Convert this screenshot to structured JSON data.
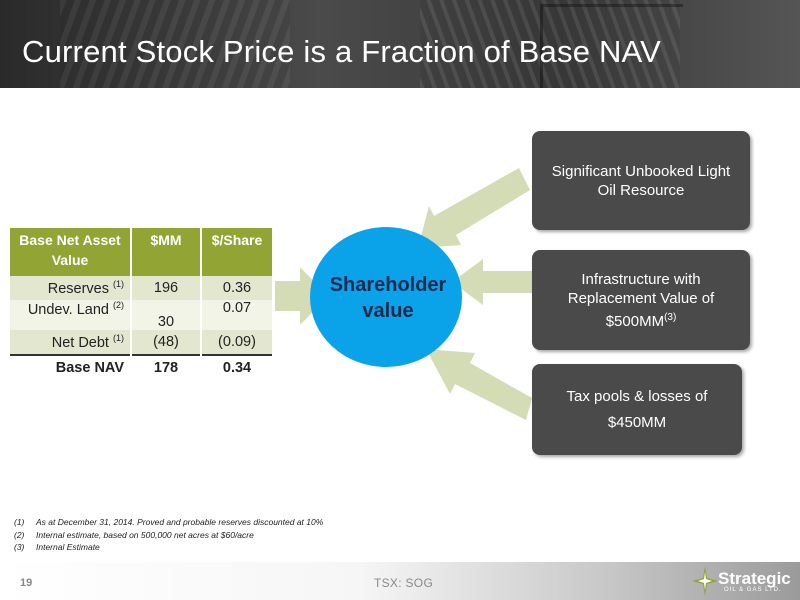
{
  "title": "Current Stock Price is a Fraction of Base NAV",
  "table": {
    "headers": [
      "Base Net Asset Value",
      "$MM",
      "$/Share"
    ],
    "rows": [
      {
        "label": "Reserves",
        "note": "(1)",
        "mm": "196",
        "share": "0.36"
      },
      {
        "label": "Undev. Land",
        "note": "(2)",
        "mm": "30",
        "share": "0.07"
      },
      {
        "label": "Net Debt",
        "note": "(1)",
        "mm": "(48)",
        "share": "(0.09)"
      }
    ],
    "total": {
      "label": "Base NAV",
      "mm": "178",
      "share": "0.34"
    }
  },
  "diagram": {
    "center": "Shareholder value",
    "boxes": [
      {
        "text": "Significant Unbooked Light Oil Resource"
      },
      {
        "text": "Infrastructure with Replacement Value of $500MM",
        "note": "(3)"
      },
      {
        "line1": "Tax pools & losses of",
        "line2": "$450MM"
      }
    ],
    "colors": {
      "ellipse": "#0aa2e8",
      "arrow": "#d3dcb4",
      "box": "#4a4a4a",
      "table_header": "#92a534"
    }
  },
  "footnotes": [
    {
      "num": "(1)",
      "text": "As at December 31, 2014. Proved and probable reserves discounted at 10%"
    },
    {
      "num": "(2)",
      "text": "Internal estimate, based on 500,000 net acres at $60/acre"
    },
    {
      "num": "(3)",
      "text": "Internal Estimate"
    }
  ],
  "footer": {
    "page": "19",
    "ticker": "TSX: SOG",
    "logo_name": "Strategic",
    "logo_sub": "OIL & GAS LTD.",
    "logo_icon": "star-icon"
  }
}
